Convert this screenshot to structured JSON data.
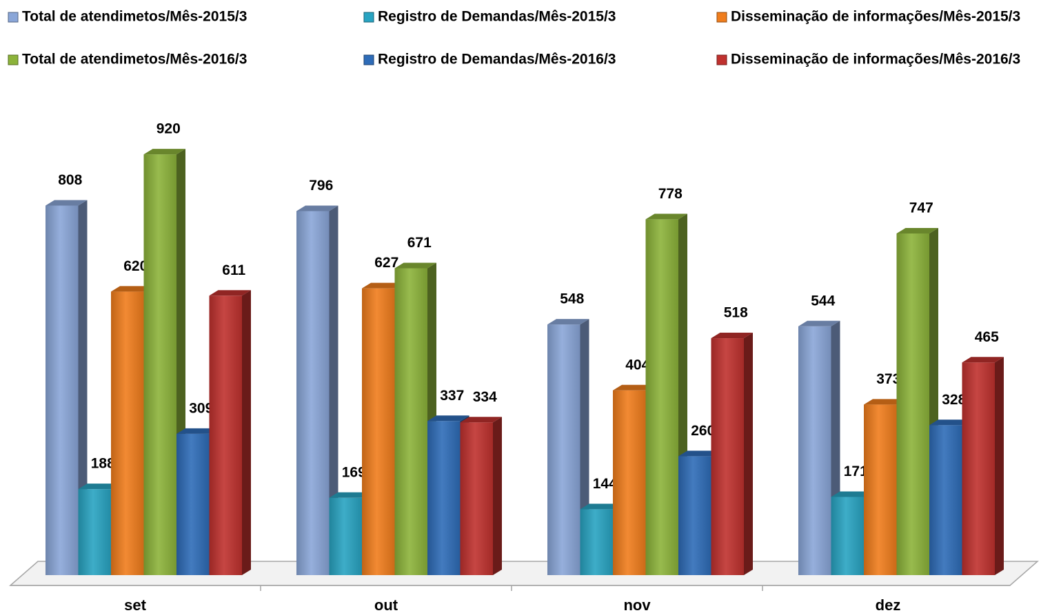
{
  "chart_data": {
    "type": "bar3d",
    "categories": [
      "set",
      "out",
      "nov",
      "dez"
    ],
    "series": [
      {
        "name": "Total de atendimetos/Mês-2015/3",
        "color": "#8aa6d8",
        "values": [
          808,
          796,
          548,
          544
        ]
      },
      {
        "name": "Registro de Demandas/Mês-2015/3",
        "color": "#28a4c2",
        "values": [
          188,
          169,
          144,
          171
        ]
      },
      {
        "name": "Disseminação de informações/Mês-2015/3",
        "color": "#f07d1c",
        "values": [
          620,
          627,
          404,
          373
        ]
      },
      {
        "name": "Total de atendimetos/Mês-2016/3",
        "color": "#8cb33a",
        "values": [
          920,
          671,
          778,
          747
        ]
      },
      {
        "name": "Registro de Demandas/Mês-2016/3",
        "color": "#2e6cb8",
        "values": [
          309,
          337,
          260,
          328
        ]
      },
      {
        "name": "Disseminação de informações/Mês-2016/3",
        "color": "#c0312e",
        "values": [
          611,
          334,
          518,
          465
        ]
      }
    ]
  }
}
